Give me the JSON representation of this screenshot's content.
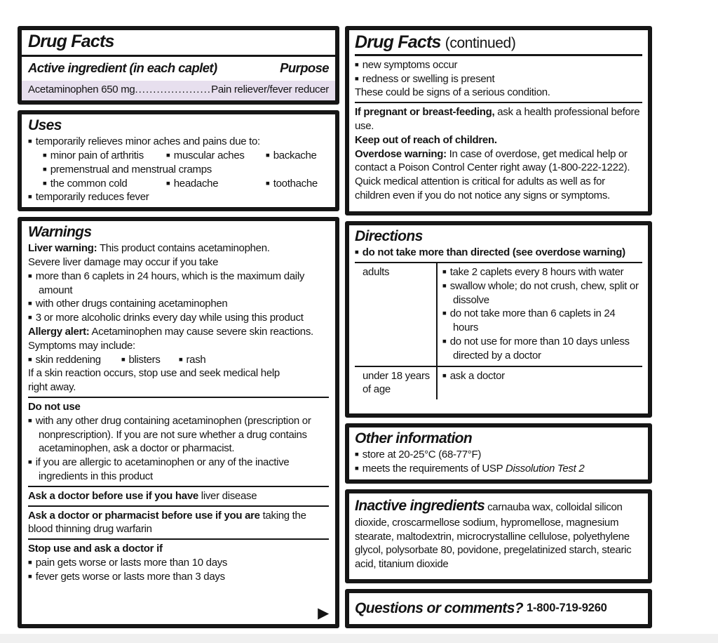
{
  "theme": {
    "page_bg": "#ffffff",
    "text_color": "#141414",
    "border_color": "#161616",
    "highlight_color": "#e7dfee",
    "bullet_glyph": "■",
    "arrow_glyph": "▶"
  },
  "left": {
    "header": {
      "title": "Drug Facts",
      "active_heading": "Active ingredient (in each caplet)",
      "purpose_heading": "Purpose",
      "ingredient_name": "Acetaminophen 650 mg",
      "leader_dots": "......................................",
      "purpose_value": "Pain reliever/fever reducer"
    },
    "uses": {
      "title": "Uses",
      "intro": "temporarily relieves minor aches and pains due to:",
      "row1": [
        "minor pain of arthritis",
        "muscular aches",
        "backache"
      ],
      "row2": "premenstrual and menstrual cramps",
      "row3": [
        "the common cold",
        "headache",
        "toothache"
      ],
      "fever": "temporarily reduces fever"
    },
    "warnings": {
      "title": "Warnings",
      "liver_label": "Liver warning:",
      "liver_line1": "This product contains acetaminophen.",
      "liver_line2": "Severe liver damage may occur if you take",
      "liver_bullets": [
        "more than 6 caplets in 24 hours, which is the maximum daily amount",
        "with other drugs containing acetaminophen",
        "3 or more alcoholic drinks every day while using this product"
      ],
      "allergy_label": "Allergy alert:",
      "allergy_line1": "Acetaminophen may cause severe skin reactions.",
      "allergy_line2": "Symptoms may include:",
      "symptoms": [
        "skin reddening",
        "blisters",
        "rash"
      ],
      "reaction_line1": "If a skin reaction occurs, stop use and seek medical help",
      "reaction_line2": "right away.",
      "do_not_use_title": "Do not use",
      "do_not_use_bullets": [
        "with any other drug containing acetaminophen (prescription or nonprescription). If you are not sure whether a drug contains acetaminophen, ask a doctor or pharmacist.",
        "if you are allergic to acetaminophen or any of the inactive ingredients in this product"
      ],
      "ask_doctor_label": "Ask a doctor before use if you have",
      "ask_doctor_text": "liver disease",
      "ask_pharmacist_label": "Ask a doctor or pharmacist before use if you are",
      "ask_pharmacist_text": "taking the blood thinning drug warfarin",
      "stop_use_title": "Stop use and ask a doctor if",
      "stop_use_bullets": [
        "pain gets worse or lasts more than 10 days",
        "fever gets worse or lasts more than 3 days"
      ]
    }
  },
  "right": {
    "continued": {
      "title": "Drug Facts",
      "title_suffix": "(continued)",
      "bullets": [
        "new symptoms occur",
        "redness or swelling is present"
      ],
      "note": "These could be signs of a serious condition.",
      "pregnant_label": "If pregnant or breast-feeding,",
      "pregnant_text": "ask a health professional before use.",
      "children_line": "Keep out of reach of children.",
      "overdose_label": "Overdose warning:",
      "overdose_text": "In case of overdose, get medical help or contact a Poison Control Center right away (1-800-222-1222). Quick medical attention is critical for adults as well as for children even if you do not notice any signs or symptoms."
    },
    "directions": {
      "title": "Directions",
      "warning_bullet": "do not take more than directed (see overdose warning)",
      "table": {
        "rows": [
          {
            "label": "adults",
            "items": [
              "take 2 caplets every 8 hours with water",
              "swallow whole; do not crush, chew, split or dissolve",
              "do not take more than 6 caplets in 24 hours",
              "do not use for more than 10 days unless directed by a doctor"
            ]
          },
          {
            "label": "under 18 years of age",
            "items": [
              "ask a doctor"
            ]
          }
        ]
      }
    },
    "other": {
      "title": "Other information",
      "storage": "store at 20-25°C (68-77°F)",
      "usp_prefix": "meets the requirements of USP ",
      "usp_italic": "Dissolution Test 2"
    },
    "inactive": {
      "title": "Inactive ingredients",
      "text": "carnauba wax, colloidal silicon dioxide, croscarmellose sodium, hypromellose, magnesium stearate, maltodextrin, microcrystalline cellulose, polyethylene glycol, polysorbate 80, povidone, pregelatinized starch, stearic acid, titanium dioxide"
    },
    "questions": {
      "title": "Questions or comments?",
      "phone": "1-800-719-9260"
    }
  }
}
